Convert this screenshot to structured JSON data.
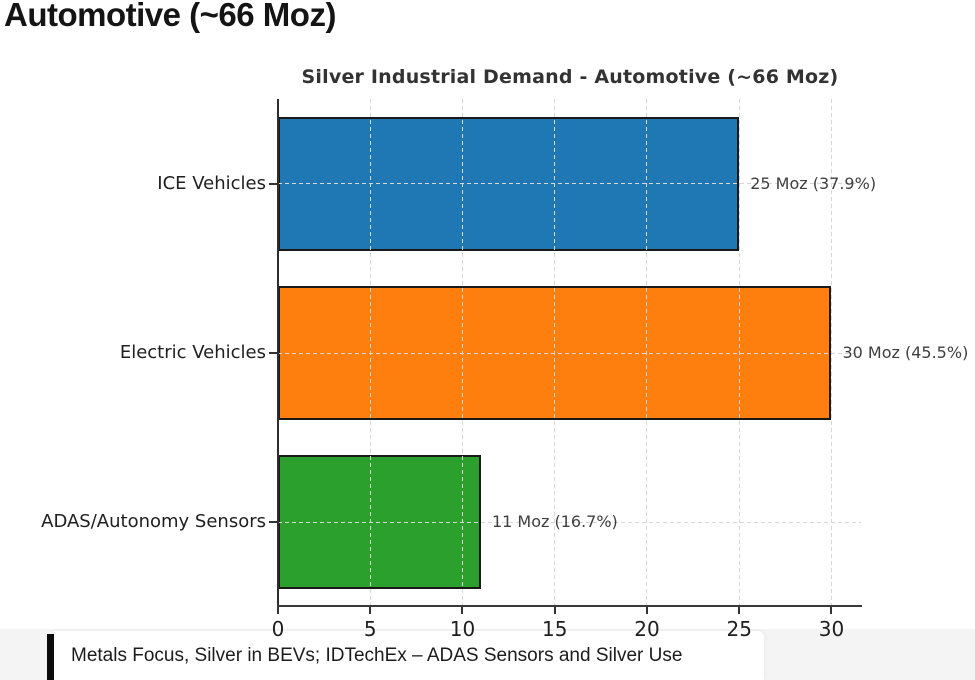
{
  "page": {
    "heading": "Automotive (~66 Moz)"
  },
  "chart_data": {
    "type": "bar",
    "orientation": "horizontal",
    "title": "Silver Industrial Demand - Automotive (~66 Moz)",
    "categories": [
      "ICE Vehicles",
      "Electric Vehicles",
      "ADAS/Autonomy Sensors"
    ],
    "values": [
      25,
      30,
      11
    ],
    "unit": "Moz",
    "percentages": [
      37.9,
      45.5,
      16.7
    ],
    "bar_labels": [
      "25 Moz (37.9%)",
      "30 Moz (45.5%)",
      "11 Moz (16.7%)"
    ],
    "bar_colors": [
      "#1f77b4",
      "#ff7f0e",
      "#2ca02c"
    ],
    "bar_edge_color": "#1a1a1a",
    "x_ticks": [
      0,
      5,
      10,
      15,
      20,
      25,
      30
    ],
    "xlim": [
      0,
      31.6
    ],
    "xlabel": "",
    "ylabel": "",
    "grid": "dashed",
    "gridline_color": "#d7d7d7",
    "legend": "none"
  },
  "citation": {
    "text": "Metals Focus, Silver in BEVs; IDTechEx – ADAS Sensors and Silver Use"
  }
}
